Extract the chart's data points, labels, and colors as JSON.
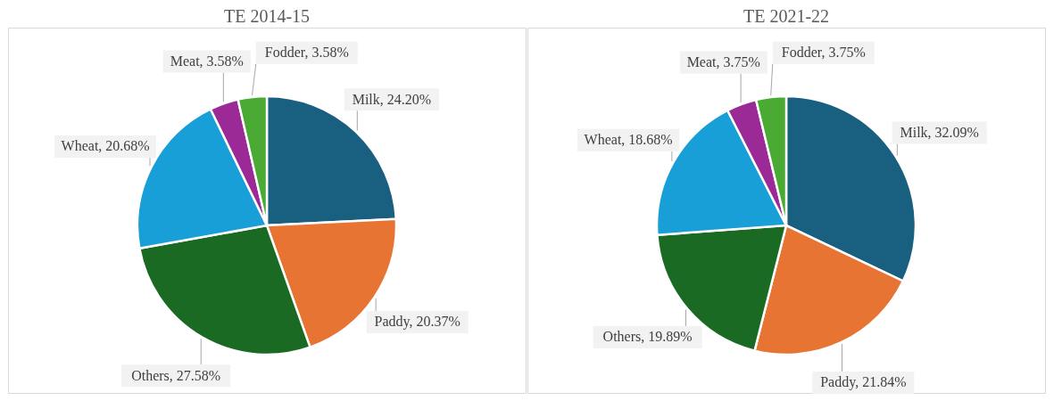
{
  "chart_data": [
    {
      "type": "pie",
      "title": "TE 2014-15",
      "categories": [
        "Milk",
        "Paddy",
        "Others",
        "Wheat",
        "Meat",
        "Fodder"
      ],
      "values": [
        24.2,
        20.37,
        27.58,
        20.68,
        3.58,
        3.58
      ],
      "value_labels": [
        "24.20%",
        "20.37%",
        "27.58%",
        "20.68%",
        "3.58%",
        "3.58%"
      ],
      "colors": [
        "#185f80",
        "#e87433",
        "#1b6a24",
        "#189fd8",
        "#9b2a96",
        "#4aaa33"
      ]
    },
    {
      "type": "pie",
      "title": "TE 2021-22",
      "categories": [
        "Milk",
        "Paddy",
        "Others",
        "Wheat",
        "Meat",
        "Fodder"
      ],
      "values": [
        32.09,
        21.84,
        19.89,
        18.68,
        3.75,
        3.75
      ],
      "value_labels": [
        "32.09%",
        "21.84%",
        "19.89%",
        "18.68%",
        "3.75%",
        "3.75%"
      ],
      "colors": [
        "#185f80",
        "#e87433",
        "#1b6a24",
        "#189fd8",
        "#9b2a96",
        "#4aaa33"
      ]
    }
  ]
}
